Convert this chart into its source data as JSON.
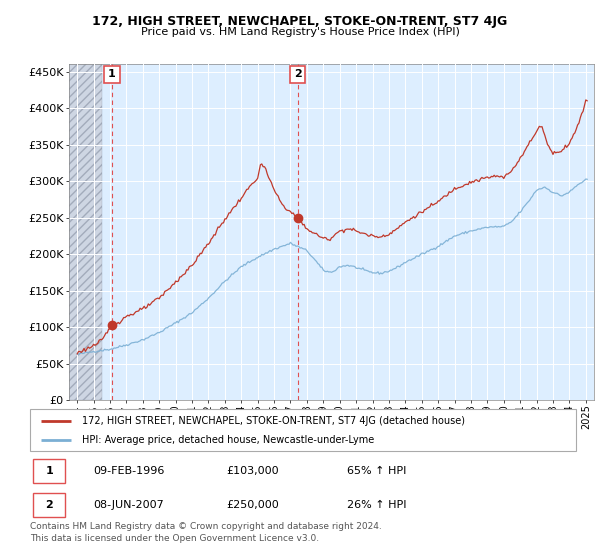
{
  "title": "172, HIGH STREET, NEWCHAPEL, STOKE-ON-TRENT, ST7 4JG",
  "subtitle": "Price paid vs. HM Land Registry's House Price Index (HPI)",
  "ylabel_ticks": [
    "£0",
    "£50K",
    "£100K",
    "£150K",
    "£200K",
    "£250K",
    "£300K",
    "£350K",
    "£400K",
    "£450K"
  ],
  "ylabel_values": [
    0,
    50000,
    100000,
    150000,
    200000,
    250000,
    300000,
    350000,
    400000,
    450000
  ],
  "ylim": [
    0,
    460000
  ],
  "xlim_start": 1993.5,
  "xlim_end": 2025.5,
  "sale1_date": 1996.11,
  "sale1_price": 103000,
  "sale2_date": 2007.44,
  "sale2_price": 250000,
  "sale1_label": "1",
  "sale2_label": "2",
  "legend_line1": "172, HIGH STREET, NEWCHAPEL, STOKE-ON-TRENT, ST7 4JG (detached house)",
  "legend_line2": "HPI: Average price, detached house, Newcastle-under-Lyme",
  "table_row1": [
    "1",
    "09-FEB-1996",
    "£103,000",
    "65% ↑ HPI"
  ],
  "table_row2": [
    "2",
    "08-JUN-2007",
    "£250,000",
    "26% ↑ HPI"
  ],
  "footer": "Contains HM Land Registry data © Crown copyright and database right 2024.\nThis data is licensed under the Open Government Licence v3.0.",
  "hpi_color": "#7bafd4",
  "price_color": "#c0392b",
  "vline_color": "#e05050",
  "plot_bg_color": "#ddeeff",
  "grid_color": "#ffffff",
  "hatch_color": "#b0b8c8",
  "xtick_years": [
    1994,
    1995,
    1996,
    1997,
    1998,
    1999,
    2000,
    2001,
    2002,
    2003,
    2004,
    2005,
    2006,
    2007,
    2008,
    2009,
    2010,
    2011,
    2012,
    2013,
    2014,
    2015,
    2016,
    2017,
    2018,
    2019,
    2020,
    2021,
    2022,
    2023,
    2024,
    2025
  ]
}
